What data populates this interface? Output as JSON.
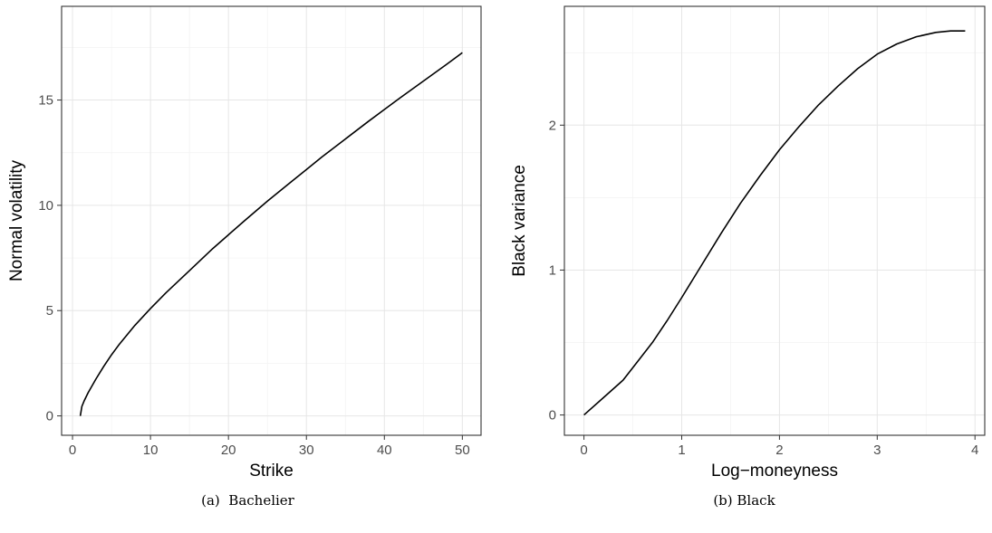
{
  "figures": [
    {
      "caption": "(a)  Bachelier",
      "chart_data": {
        "type": "line",
        "xlabel": "Strike",
        "ylabel": "Normal volatility",
        "xlim": [
          -1.4,
          52.4
        ],
        "ylim": [
          -0.92,
          19.45
        ],
        "xticks": [
          0,
          10,
          20,
          30,
          40,
          50
        ],
        "yticks": [
          0,
          5,
          10,
          15
        ],
        "grid": true,
        "series": [
          {
            "color": "#000000",
            "x": [
              1.0,
              1.2,
              1.5,
              2,
              3,
              4,
              5,
              6,
              8,
              10,
              12,
              15,
              18,
              20,
              22,
              25,
              28,
              30,
              32,
              35,
              38,
              40,
              42,
              45,
              48,
              50
            ],
            "y": [
              0.0,
              0.45,
              0.72,
              1.1,
              1.75,
              2.35,
              2.9,
              3.4,
              4.3,
              5.1,
              5.85,
              6.9,
              7.95,
              8.6,
              9.25,
              10.2,
              11.1,
              11.7,
              12.3,
              13.15,
              14.0,
              14.55,
              15.1,
              15.9,
              16.7,
              17.25
            ]
          }
        ]
      }
    },
    {
      "caption": "(b) Black",
      "chart_data": {
        "type": "line",
        "xlabel": "Log−moneyness",
        "ylabel": "Black variance",
        "xlim": [
          -0.2,
          4.1
        ],
        "ylim": [
          -0.14,
          2.82
        ],
        "xticks": [
          0,
          1,
          2,
          3,
          4
        ],
        "yticks": [
          0,
          1,
          2
        ],
        "grid": true,
        "series": [
          {
            "color": "#000000",
            "x": [
              0.0,
              0.2,
              0.4,
              0.55,
              0.7,
              0.85,
              1.0,
              1.2,
              1.4,
              1.6,
              1.8,
              2.0,
              2.2,
              2.4,
              2.6,
              2.8,
              3.0,
              3.2,
              3.4,
              3.6,
              3.75,
              3.9
            ],
            "y": [
              0.0,
              0.12,
              0.24,
              0.37,
              0.5,
              0.65,
              0.81,
              1.03,
              1.25,
              1.46,
              1.65,
              1.83,
              1.99,
              2.14,
              2.27,
              2.39,
              2.49,
              2.56,
              2.61,
              2.64,
              2.65,
              2.65
            ]
          }
        ]
      }
    }
  ]
}
